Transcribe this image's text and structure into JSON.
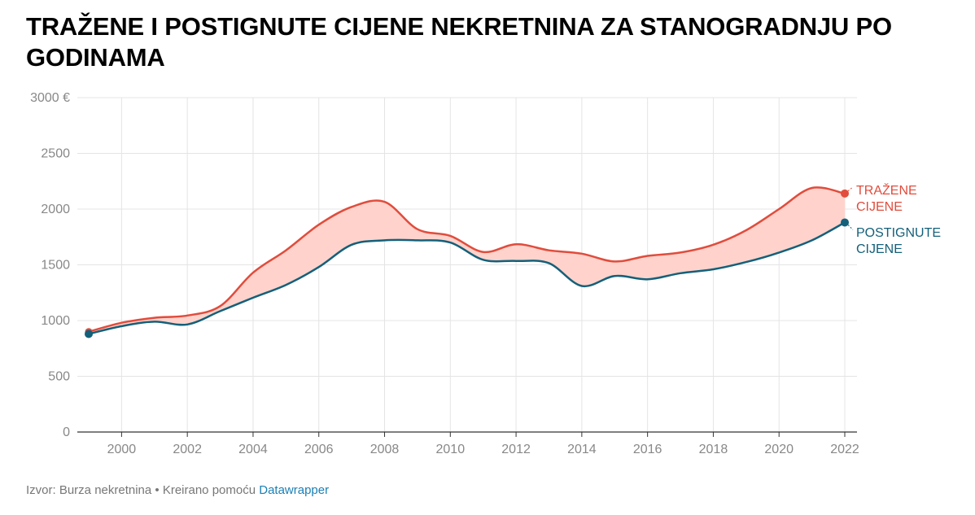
{
  "title": "TRAŽENE I POSTIGNUTE CIJENE NEKRETNINA ZA STANOGRADNJU PO GODINAMA",
  "footer": {
    "source": "Izvor: Burza nekretnina • Kreirano pomoću ",
    "link": "Datawrapper"
  },
  "colors": {
    "asking": "#e14c3c",
    "achieved": "#14607a",
    "band": "#ffd3cc",
    "grid": "#e4e4e4"
  },
  "chart_data": {
    "type": "line",
    "x": [
      1999,
      2000,
      2001,
      2002,
      2003,
      2004,
      2005,
      2006,
      2007,
      2008,
      2009,
      2010,
      2011,
      2012,
      2013,
      2014,
      2015,
      2016,
      2017,
      2018,
      2019,
      2020,
      2021,
      2022
    ],
    "series": [
      {
        "name": "TRAŽENE CIJENE",
        "label_lines": [
          "TRAŽENE",
          "CIJENE"
        ],
        "values": [
          900,
          980,
          1025,
          1045,
          1130,
          1430,
          1630,
          1860,
          2020,
          2065,
          1820,
          1760,
          1615,
          1685,
          1630,
          1600,
          1530,
          1580,
          1610,
          1680,
          1810,
          2000,
          2190,
          2140
        ]
      },
      {
        "name": "POSTIGNUTE CIJENE",
        "label_lines": [
          "POSTIGNUTE",
          "CIJENE"
        ],
        "values": [
          880,
          950,
          990,
          965,
          1085,
          1205,
          1320,
          1480,
          1680,
          1720,
          1720,
          1700,
          1545,
          1535,
          1515,
          1310,
          1400,
          1370,
          1425,
          1460,
          1525,
          1610,
          1720,
          1880
        ]
      }
    ],
    "y_ticks": [
      0,
      500,
      1000,
      1500,
      2000,
      2500,
      3000
    ],
    "y_tick_labels": [
      "0",
      "500",
      "1000",
      "1500",
      "2000",
      "2500",
      "3000 €"
    ],
    "x_ticks": [
      2000,
      2002,
      2004,
      2006,
      2008,
      2010,
      2012,
      2014,
      2016,
      2018,
      2020,
      2022
    ],
    "ylim": [
      0,
      3000
    ],
    "xlim": [
      1999,
      2022
    ]
  }
}
